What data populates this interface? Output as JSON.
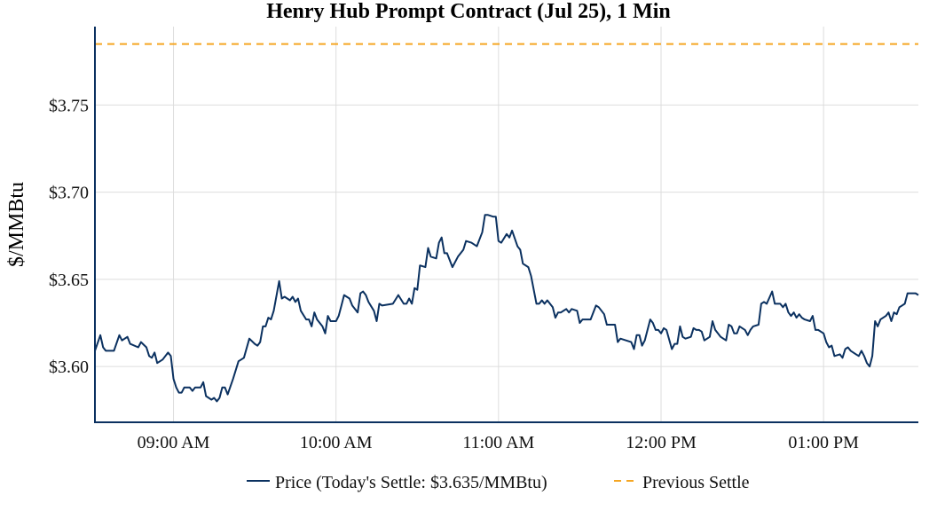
{
  "chart_data": {
    "type": "line",
    "title": "Henry Hub Prompt Contract (Jul 25), 1 Min",
    "xlabel": "",
    "ylabel": "$/MMBtu",
    "xlim": [
      "08:31",
      "13:35"
    ],
    "ylim": [
      3.568,
      3.795
    ],
    "x_ticks": [
      {
        "time": "09:00",
        "label": "09:00 AM"
      },
      {
        "time": "10:00",
        "label": "10:00 AM"
      },
      {
        "time": "11:00",
        "label": "11:00 AM"
      },
      {
        "time": "12:00",
        "label": "12:00 PM"
      },
      {
        "time": "13:00",
        "label": "01:00 PM"
      }
    ],
    "y_ticks": [
      {
        "value": 3.6,
        "label": "$3.60"
      },
      {
        "value": 3.65,
        "label": "$3.65"
      },
      {
        "value": 3.7,
        "label": "$3.70"
      },
      {
        "value": 3.75,
        "label": "$3.75"
      }
    ],
    "grid": true,
    "legend_position": "bottom",
    "colors": {
      "price": "#0b3160",
      "previous_settle": "#f5a623",
      "grid": "#dddddd",
      "axis": "#0b3160"
    },
    "series": [
      {
        "name": "Price (Today's Settle: $3.635/MMBtu)",
        "style": "solid",
        "x": [
          "08:31",
          "08:33",
          "08:34",
          "08:35",
          "08:38",
          "08:40",
          "08:41",
          "08:43",
          "08:44",
          "08:47",
          "08:48",
          "08:50",
          "08:51",
          "08:52",
          "08:53",
          "08:54",
          "08:56",
          "08:58",
          "08:59",
          "09:00",
          "09:01",
          "09:02",
          "09:03",
          "09:04",
          "09:06",
          "09:07",
          "09:08",
          "09:10",
          "09:11",
          "09:12",
          "09:14",
          "09:15",
          "09:16",
          "09:17",
          "09:18",
          "09:19",
          "09:20",
          "09:22",
          "09:24",
          "09:25",
          "09:26",
          "09:28",
          "09:30",
          "09:31",
          "09:32",
          "09:33",
          "09:34",
          "09:35",
          "09:36",
          "09:37",
          "09:39",
          "09:40",
          "09:41",
          "09:43",
          "09:44",
          "09:45",
          "09:46",
          "09:47",
          "09:49",
          "09:50",
          "09:51",
          "09:52",
          "09:53",
          "09:55",
          "09:56",
          "09:57",
          "09:58",
          "10:00",
          "10:01",
          "10:02",
          "10:03",
          "10:05",
          "10:06",
          "10:08",
          "10:09",
          "10:10",
          "10:11",
          "10:12",
          "10:14",
          "10:15",
          "10:16",
          "10:17",
          "10:21",
          "10:23",
          "10:25",
          "10:26",
          "10:27",
          "10:28",
          "10:29",
          "10:30",
          "10:31",
          "10:33",
          "10:34",
          "10:35",
          "10:37",
          "10:38",
          "10:39",
          "10:40",
          "10:41",
          "10:43",
          "10:45",
          "10:47",
          "10:48",
          "10:50",
          "10:52",
          "10:54",
          "10:55",
          "10:56",
          "10:58",
          "10:59",
          "11:00",
          "11:01",
          "11:03",
          "11:04",
          "11:05",
          "11:07",
          "11:08",
          "11:09",
          "11:11",
          "11:12",
          "11:14",
          "11:15",
          "11:16",
          "11:17",
          "11:18",
          "11:20",
          "11:21",
          "11:22",
          "11:23",
          "11:25",
          "11:26",
          "11:27",
          "11:29",
          "11:30",
          "11:31",
          "11:34",
          "11:36",
          "11:37",
          "11:39",
          "11:40",
          "11:42",
          "11:43",
          "11:44",
          "11:45",
          "11:49",
          "11:50",
          "11:51",
          "11:52",
          "11:53",
          "11:54",
          "11:56",
          "11:57",
          "11:58",
          "11:59",
          "12:00",
          "12:01",
          "12:02",
          "12:04",
          "12:05",
          "12:06",
          "12:07",
          "12:08",
          "12:09",
          "12:11",
          "12:12",
          "12:13",
          "12:14",
          "12:15",
          "12:16",
          "12:17",
          "12:18",
          "12:19",
          "12:20",
          "12:22",
          "12:23",
          "12:24",
          "12:25",
          "12:26",
          "12:27",
          "12:28",
          "12:29",
          "12:31",
          "12:32",
          "12:33",
          "12:34",
          "12:36",
          "12:37",
          "12:38",
          "12:39",
          "12:41",
          "12:42",
          "12:44",
          "12:45",
          "12:46",
          "12:47",
          "12:48",
          "12:49",
          "12:50",
          "12:51",
          "12:52",
          "12:53",
          "12:55",
          "12:56",
          "12:57",
          "12:58",
          "13:00",
          "13:01",
          "13:02",
          "13:03",
          "13:04",
          "13:06",
          "13:07",
          "13:08",
          "13:09",
          "13:10",
          "13:12",
          "13:13",
          "13:14",
          "13:15",
          "13:16",
          "13:17",
          "13:18",
          "13:19",
          "13:20",
          "13:21",
          "13:23",
          "13:24",
          "13:25",
          "13:26",
          "13:27",
          "13:28",
          "13:30",
          "13:31",
          "13:34",
          "13:35"
        ],
        "y": [
          3.609,
          3.618,
          3.611,
          3.609,
          3.609,
          3.618,
          3.615,
          3.617,
          3.613,
          3.611,
          3.614,
          3.611,
          3.606,
          3.605,
          3.608,
          3.602,
          3.604,
          3.608,
          3.606,
          3.593,
          3.588,
          3.585,
          3.585,
          3.588,
          3.588,
          3.586,
          3.588,
          3.588,
          3.591,
          3.583,
          3.581,
          3.582,
          3.58,
          3.582,
          3.588,
          3.588,
          3.584,
          3.593,
          3.603,
          3.604,
          3.605,
          3.616,
          3.613,
          3.612,
          3.614,
          3.623,
          3.623,
          3.628,
          3.627,
          3.632,
          3.649,
          3.639,
          3.64,
          3.638,
          3.64,
          3.637,
          3.639,
          3.632,
          3.627,
          3.627,
          3.623,
          3.631,
          3.627,
          3.623,
          3.619,
          3.629,
          3.626,
          3.626,
          3.629,
          3.635,
          3.641,
          3.639,
          3.635,
          3.631,
          3.642,
          3.643,
          3.641,
          3.637,
          3.632,
          3.626,
          3.636,
          3.635,
          3.636,
          3.641,
          3.636,
          3.636,
          3.639,
          3.636,
          3.645,
          3.644,
          3.658,
          3.657,
          3.668,
          3.663,
          3.662,
          3.671,
          3.674,
          3.665,
          3.665,
          3.657,
          3.663,
          3.667,
          3.672,
          3.671,
          3.669,
          3.677,
          3.687,
          3.687,
          3.686,
          3.686,
          3.672,
          3.671,
          3.676,
          3.674,
          3.678,
          3.669,
          3.667,
          3.659,
          3.657,
          3.652,
          3.636,
          3.636,
          3.638,
          3.636,
          3.638,
          3.634,
          3.628,
          3.631,
          3.631,
          3.633,
          3.631,
          3.633,
          3.632,
          3.625,
          3.627,
          3.627,
          3.635,
          3.634,
          3.63,
          3.624,
          3.624,
          3.624,
          3.614,
          3.616,
          3.614,
          3.61,
          3.618,
          3.618,
          3.612,
          3.615,
          3.627,
          3.625,
          3.621,
          3.621,
          3.619,
          3.622,
          3.621,
          3.61,
          3.613,
          3.613,
          3.623,
          3.617,
          3.616,
          3.617,
          3.622,
          3.621,
          3.621,
          3.62,
          3.615,
          3.616,
          3.617,
          3.626,
          3.621,
          3.617,
          3.616,
          3.615,
          3.624,
          3.623,
          3.619,
          3.619,
          3.623,
          3.621,
          3.618,
          3.621,
          3.623,
          3.624,
          3.636,
          3.637,
          3.636,
          3.643,
          3.636,
          3.636,
          3.634,
          3.636,
          3.631,
          3.629,
          3.631,
          3.628,
          3.63,
          3.628,
          3.627,
          3.626,
          3.629,
          3.621,
          3.621,
          3.619,
          3.614,
          3.611,
          3.612,
          3.606,
          3.607,
          3.605,
          3.61,
          3.611,
          3.609,
          3.607,
          3.606,
          3.609,
          3.606,
          3.602,
          3.6,
          3.606,
          3.626,
          3.623,
          3.627,
          3.629,
          3.631,
          3.626,
          3.631,
          3.63,
          3.634,
          3.636,
          3.642,
          3.642,
          3.641
        ]
      },
      {
        "name": "Previous Settle",
        "style": "dashed",
        "constant": 3.785
      }
    ]
  }
}
